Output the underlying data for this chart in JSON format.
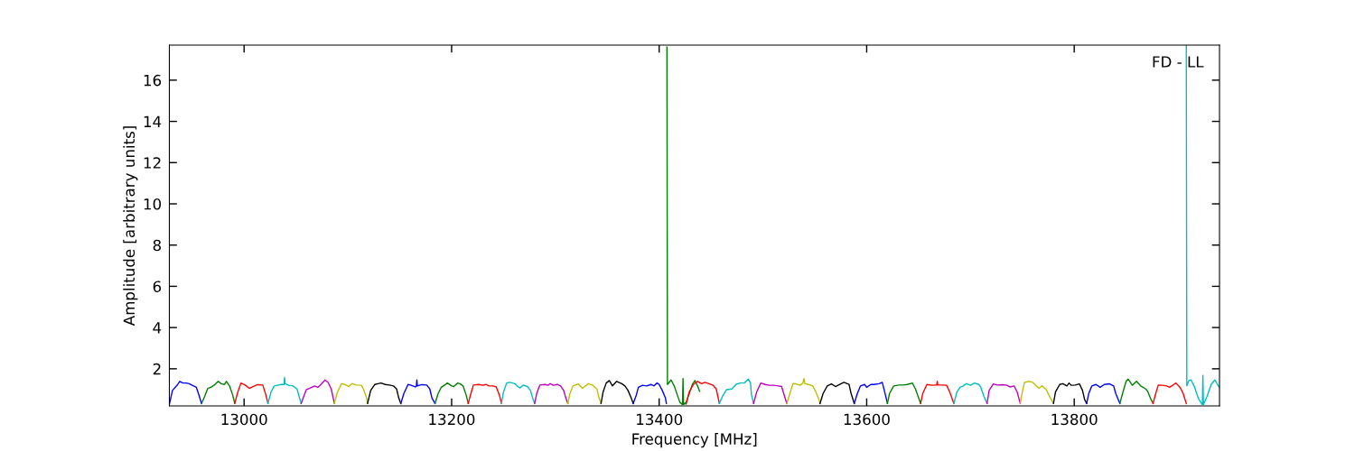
{
  "chart_data": {
    "type": "line",
    "xlabel": "Frequency [MHz]",
    "ylabel": "Amplitude [arbitrary units]",
    "annotations": [
      "FD - LL"
    ],
    "xlim": [
      12928,
      13940
    ],
    "ylim": [
      0.2,
      17.7
    ],
    "xticks": [
      13000,
      13200,
      13400,
      13600,
      13800
    ],
    "yticks": [
      2,
      4,
      6,
      8,
      10,
      12,
      14,
      16
    ],
    "grid": false,
    "series": [
      {
        "color": "#0000ff",
        "x": [
          12928,
          12931,
          12936,
          12938,
          12941,
          12944,
          12947,
          12950,
          12954,
          12956,
          12959
        ],
        "values": [
          0.29,
          0.95,
          1.24,
          1.39,
          1.31,
          1.31,
          1.28,
          1.2,
          1.1,
          0.8,
          0.32
        ]
      },
      {
        "color": "#008000",
        "x": [
          12959,
          12962,
          12965,
          12968,
          12971,
          12975,
          12978,
          12981,
          12983,
          12986,
          12989,
          12991
        ],
        "values": [
          0.32,
          0.66,
          1.05,
          1.1,
          1.2,
          1.39,
          1.28,
          1.24,
          1.39,
          1.17,
          0.73,
          0.32
        ]
      },
      {
        "color": "#ff0000",
        "x": [
          12991,
          12994,
          12997,
          13001,
          13005,
          13010,
          13013,
          13018,
          13021,
          13023
        ],
        "values": [
          0.32,
          0.88,
          1.31,
          1.21,
          1.05,
          1.17,
          1.23,
          1.21,
          0.73,
          0.32
        ]
      },
      {
        "color": "#00bfbf",
        "x": [
          13023,
          13026,
          13029,
          13033,
          13036,
          13038.5,
          13039,
          13039.5,
          13043,
          13047,
          13051,
          13053,
          13055
        ],
        "values": [
          0.32,
          0.88,
          1.17,
          1.21,
          1.24,
          1.24,
          1.58,
          1.28,
          1.2,
          1.17,
          1.02,
          0.66,
          0.32
        ]
      },
      {
        "color": "#bf00bf",
        "x": [
          13055,
          13057,
          13060,
          13063,
          13068,
          13071,
          13074,
          13078,
          13081,
          13084,
          13087
        ],
        "values": [
          0.32,
          0.59,
          0.99,
          1.05,
          1.17,
          1.1,
          1.24,
          1.46,
          1.34,
          1.02,
          0.32
        ]
      },
      {
        "color": "#bfbf00",
        "x": [
          13087,
          13090,
          13094,
          13097,
          13101,
          13104,
          13108,
          13113,
          13115,
          13118,
          13119
        ],
        "values": [
          0.32,
          0.88,
          1.28,
          1.24,
          1.14,
          1.28,
          1.21,
          1.2,
          1.02,
          0.59,
          0.32
        ]
      },
      {
        "color": "#000000",
        "x": [
          13119,
          13122,
          13126,
          13129,
          13132,
          13136,
          13140,
          13144,
          13147,
          13149,
          13151
        ],
        "values": [
          0.32,
          0.95,
          1.24,
          1.28,
          1.31,
          1.24,
          1.21,
          1.17,
          1.02,
          0.59,
          0.32
        ]
      },
      {
        "color": "#0000ff",
        "x": [
          13151,
          13154,
          13158,
          13161,
          13165,
          13166,
          13166.5,
          13167,
          13171,
          13176,
          13179,
          13181,
          13184
        ],
        "values": [
          0.32,
          0.8,
          1.24,
          1.2,
          1.12,
          1.15,
          1.46,
          1.17,
          1.23,
          1.21,
          1.02,
          0.59,
          0.32
        ]
      },
      {
        "color": "#008000",
        "x": [
          13184,
          13187,
          13190,
          13192,
          13196,
          13200,
          13202,
          13206,
          13208,
          13211,
          13214,
          13216
        ],
        "values": [
          0.32,
          0.8,
          1.1,
          1.17,
          1.31,
          1.17,
          1.14,
          1.31,
          1.28,
          1.17,
          0.73,
          0.32
        ]
      },
      {
        "color": "#ff0000",
        "x": [
          13216,
          13219,
          13221,
          13226,
          13230,
          13233,
          13236,
          13240,
          13243,
          13246,
          13248
        ],
        "values": [
          0.32,
          0.88,
          1.21,
          1.24,
          1.2,
          1.24,
          1.17,
          1.17,
          1.12,
          0.73,
          0.32
        ]
      },
      {
        "color": "#00bfbf",
        "x": [
          13248,
          13250,
          13253,
          13256,
          13261,
          13263,
          13266,
          13269,
          13273,
          13276,
          13278,
          13280
        ],
        "values": [
          0.32,
          0.88,
          1.31,
          1.34,
          1.28,
          1.17,
          1.07,
          1.21,
          1.14,
          0.95,
          0.59,
          0.32
        ]
      },
      {
        "color": "#bf00bf",
        "x": [
          13280,
          13282,
          13285,
          13290,
          13293,
          13295,
          13298,
          13302,
          13305,
          13308,
          13310,
          13312
        ],
        "values": [
          0.32,
          0.8,
          1.21,
          1.24,
          1.2,
          1.28,
          1.2,
          1.24,
          1.17,
          0.95,
          0.59,
          0.32
        ]
      },
      {
        "color": "#bfbf00",
        "x": [
          13312,
          13314,
          13317,
          13322,
          13326,
          13329,
          13332,
          13336,
          13340,
          13342,
          13344
        ],
        "values": [
          0.32,
          0.8,
          1.17,
          1.27,
          1.05,
          1.17,
          1.28,
          1.2,
          1.02,
          0.59,
          0.32
        ]
      },
      {
        "color": "#000000",
        "x": [
          13344,
          13346,
          13349,
          13352,
          13355,
          13359,
          13364,
          13367,
          13370,
          13373,
          13375
        ],
        "values": [
          0.32,
          0.88,
          1.31,
          1.43,
          1.17,
          1.39,
          1.28,
          1.17,
          0.95,
          0.59,
          0.32
        ]
      },
      {
        "color": "#0000ff",
        "x": [
          13375,
          13378,
          13380,
          13384,
          13388,
          13392,
          13395,
          13398,
          13400,
          13403,
          13406,
          13407
        ],
        "values": [
          0.32,
          0.73,
          1.1,
          1.2,
          1.17,
          1.24,
          1.17,
          1.31,
          1.24,
          0.95,
          0.59,
          0.32
        ]
      },
      {
        "color": "#008000",
        "x": [
          13407.5,
          13408,
          13411.5,
          13414.5,
          13417.5,
          13420,
          13422.5,
          13423,
          13423.5,
          13426,
          13429,
          13432,
          13434.5,
          13437,
          13439
        ],
        "values": [
          17.6,
          1.24,
          1.46,
          1.17,
          0.73,
          0.37,
          0.27,
          1.53,
          0.27,
          0.37,
          0.8,
          1.24,
          1.43,
          1.17,
          0.91
        ]
      },
      {
        "color": "#ff0000",
        "x": [
          13426,
          13429,
          13433,
          13437,
          13441,
          13444,
          13448,
          13452,
          13455,
          13458
        ],
        "values": [
          0.29,
          0.88,
          1.24,
          1.39,
          1.28,
          1.34,
          1.28,
          1.2,
          1.02,
          0.32
        ]
      },
      {
        "color": "#00bfbf",
        "x": [
          13458,
          13461,
          13465,
          13470,
          13474,
          13478,
          13482,
          13486,
          13488,
          13489,
          13491
        ],
        "values": [
          0.32,
          0.66,
          0.99,
          1.02,
          1.24,
          1.31,
          1.31,
          1.5,
          1.31,
          0.73,
          0.32
        ]
      },
      {
        "color": "#bf00bf",
        "x": [
          13491,
          13494,
          13498,
          13502,
          13506,
          13510,
          13515,
          13518,
          13520,
          13523
        ],
        "values": [
          0.32,
          0.88,
          1.31,
          1.24,
          1.2,
          1.2,
          1.17,
          1.14,
          0.8,
          0.32
        ]
      },
      {
        "color": "#bfbf00",
        "x": [
          13523,
          13526,
          13529,
          13532,
          13536,
          13538.5,
          13539.5,
          13540.5,
          13544,
          13548,
          13551,
          13554,
          13555
        ],
        "values": [
          0.32,
          0.8,
          1.28,
          1.27,
          1.2,
          1.31,
          1.53,
          1.28,
          1.24,
          1.17,
          0.88,
          0.51,
          0.32
        ]
      },
      {
        "color": "#000000",
        "x": [
          13555,
          13558,
          13562,
          13566,
          13570,
          13574,
          13578,
          13583,
          13585,
          13588
        ],
        "values": [
          0.32,
          0.8,
          1.17,
          1.27,
          1.14,
          1.24,
          1.34,
          1.24,
          0.8,
          0.32
        ]
      },
      {
        "color": "#0000ff",
        "x": [
          13588,
          13591,
          13594,
          13598,
          13600,
          13604,
          13607,
          13612,
          13615,
          13617,
          13620
        ],
        "values": [
          0.32,
          0.8,
          1.17,
          1.24,
          1.1,
          1.24,
          1.24,
          1.28,
          1.34,
          0.95,
          0.32
        ]
      },
      {
        "color": "#008000",
        "x": [
          13620,
          13622,
          13626,
          13631,
          13635,
          13639,
          13644,
          13647,
          13650,
          13652
        ],
        "values": [
          0.32,
          0.8,
          1.17,
          1.21,
          1.21,
          1.24,
          1.31,
          1.02,
          0.59,
          0.32
        ]
      },
      {
        "color": "#ff0000",
        "x": [
          13652,
          13654,
          13658,
          13663,
          13666,
          13667.5,
          13668,
          13668.5,
          13673,
          13677,
          13680,
          13684
        ],
        "values": [
          0.32,
          0.8,
          1.24,
          1.2,
          1.21,
          1.21,
          1.39,
          1.21,
          1.21,
          1.2,
          0.88,
          0.32
        ]
      },
      {
        "color": "#00bfbf",
        "x": [
          13684,
          13687,
          13690,
          13693,
          13696,
          13700,
          13704,
          13708,
          13710,
          13713,
          13716
        ],
        "values": [
          0.32,
          0.88,
          1.1,
          1.17,
          1.28,
          1.2,
          1.31,
          1.24,
          1.1,
          0.66,
          0.32
        ]
      },
      {
        "color": "#bf00bf",
        "x": [
          13716,
          13718,
          13722,
          13726,
          13731,
          13735,
          13738,
          13742,
          13745,
          13748
        ],
        "values": [
          0.32,
          0.95,
          1.27,
          1.21,
          1.23,
          1.2,
          1.12,
          1.17,
          0.88,
          0.32
        ]
      },
      {
        "color": "#bfbf00",
        "x": [
          13748,
          13750,
          13752,
          13757,
          13760,
          13763,
          13766,
          13769,
          13773,
          13777,
          13780
        ],
        "values": [
          0.32,
          0.88,
          1.34,
          1.39,
          1.34,
          1.2,
          1.05,
          1.17,
          0.99,
          0.59,
          0.32
        ]
      },
      {
        "color": "#000000",
        "x": [
          13780,
          13782,
          13786,
          13789,
          13793,
          13795,
          13797,
          13801,
          13805,
          13808,
          13810,
          13812
        ],
        "values": [
          0.32,
          0.88,
          1.24,
          1.28,
          1.17,
          1.31,
          1.2,
          1.21,
          1.27,
          0.95,
          0.51,
          0.32
        ]
      },
      {
        "color": "#0000ff",
        "x": [
          13812,
          13814,
          13817,
          13821,
          13825,
          13829,
          13834,
          13838,
          13840,
          13844
        ],
        "values": [
          0.32,
          0.8,
          1.17,
          1.24,
          1.1,
          1.24,
          1.27,
          1.17,
          0.8,
          0.32
        ]
      },
      {
        "color": "#008000",
        "x": [
          13844,
          13847,
          13850,
          13852,
          13856,
          13860,
          13864,
          13869,
          13871,
          13874,
          13876
        ],
        "values": [
          0.32,
          0.88,
          1.39,
          1.5,
          1.2,
          1.39,
          1.17,
          1.02,
          0.88,
          0.51,
          0.32
        ]
      },
      {
        "color": "#ff0000",
        "x": [
          13876,
          13879,
          13881,
          13885,
          13889,
          13892,
          13896,
          13898,
          13902,
          13905,
          13908
        ],
        "values": [
          0.32,
          0.88,
          1.21,
          1.2,
          1.17,
          1.1,
          1.24,
          1.31,
          1.1,
          0.8,
          0.32
        ]
      },
      {
        "color": "#00bfbf",
        "x": [
          13908,
          13908.5,
          13910.5,
          13912.5,
          13915.5,
          13919.5,
          13922.5,
          13923.5,
          13924,
          13924.5,
          13925,
          13928,
          13932,
          13935.5,
          13938,
          13940
        ],
        "values": [
          17.7,
          1.17,
          1.43,
          1.46,
          1.17,
          0.58,
          0.32,
          0.27,
          1.68,
          0.27,
          0.32,
          0.66,
          1.24,
          1.46,
          1.24,
          1.1
        ]
      }
    ]
  }
}
